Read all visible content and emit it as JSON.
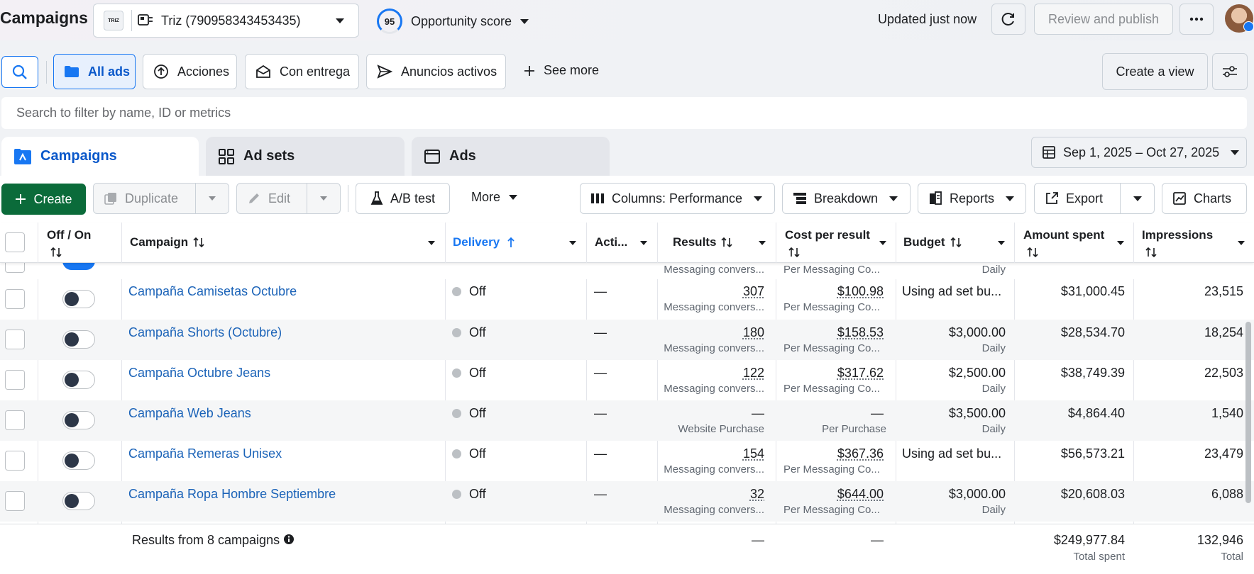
{
  "header": {
    "title": "Campaigns",
    "account_name": "Triz (790958343453435)",
    "account_logo_text": "TRIZ",
    "opportunity_score": "95",
    "opportunity_label": "Opportunity score",
    "updated_text": "Updated just now",
    "review_publish_label": "Review and publish"
  },
  "views": {
    "items": [
      {
        "label": "All ads",
        "active": true
      },
      {
        "label": "Acciones"
      },
      {
        "label": "Con entrega"
      },
      {
        "label": "Anuncios activos"
      }
    ],
    "see_more_label": "See more",
    "create_view_label": "Create a view"
  },
  "search": {
    "placeholder": "Search to filter by name, ID or metrics"
  },
  "tabs": [
    {
      "label": "Campaigns",
      "active": true
    },
    {
      "label": "Ad sets"
    },
    {
      "label": "Ads"
    }
  ],
  "date_range": "Sep 1, 2025 – Oct 27, 2025",
  "actions": {
    "create": "Create",
    "duplicate": "Duplicate",
    "edit": "Edit",
    "ab_test": "A/B test",
    "more": "More",
    "columns": "Columns: Performance",
    "breakdown": "Breakdown",
    "reports": "Reports",
    "export": "Export",
    "charts": "Charts"
  },
  "table": {
    "headers": {
      "off_on": "Off / On",
      "campaign": "Campaign",
      "delivery": "Delivery",
      "actions": "Acti...",
      "results": "Results",
      "cost_per_result": "Cost per result",
      "budget": "Budget",
      "amount_spent": "Amount spent",
      "impressions": "Impressions"
    },
    "partial_row": {
      "results_sub": "Messaging convers...",
      "cost_sub": "Per Messaging Co...",
      "budget_sub": "Daily"
    },
    "rows": [
      {
        "campaign": "Campaña Camisetas Octubre",
        "delivery": "Off",
        "actions": "—",
        "results": "307",
        "results_sub": "Messaging convers...",
        "cost": "$100.98",
        "cost_sub": "Per Messaging Co...",
        "budget": "Using ad set bu...",
        "budget_sub": "",
        "spent": "$31,000.45",
        "impressions": "23,515"
      },
      {
        "campaign": "Campaña Shorts (Octubre)",
        "delivery": "Off",
        "actions": "—",
        "results": "180",
        "results_sub": "Messaging convers...",
        "cost": "$158.53",
        "cost_sub": "Per Messaging Co...",
        "budget": "$3,000.00",
        "budget_sub": "Daily",
        "spent": "$28,534.70",
        "impressions": "18,254"
      },
      {
        "campaign": "Campaña Octubre Jeans",
        "delivery": "Off",
        "actions": "—",
        "results": "122",
        "results_sub": "Messaging convers...",
        "cost": "$317.62",
        "cost_sub": "Per Messaging Co...",
        "budget": "$2,500.00",
        "budget_sub": "Daily",
        "spent": "$38,749.39",
        "impressions": "22,503"
      },
      {
        "campaign": "Campaña Web Jeans",
        "delivery": "Off",
        "actions": "—",
        "results": "—",
        "results_sub": "Website Purchase",
        "cost": "—",
        "cost_sub": "Per Purchase",
        "budget": "$3,500.00",
        "budget_sub": "Daily",
        "spent": "$4,864.40",
        "impressions": "1,540"
      },
      {
        "campaign": "Campaña Remeras Unisex",
        "delivery": "Off",
        "actions": "—",
        "results": "154",
        "results_sub": "Messaging convers...",
        "cost": "$367.36",
        "cost_sub": "Per Messaging Co...",
        "budget": "Using ad set bu...",
        "budget_sub": "",
        "spent": "$56,573.21",
        "impressions": "23,479"
      },
      {
        "campaign": "Campaña Ropa Hombre Septiembre",
        "delivery": "Off",
        "actions": "—",
        "results": "32",
        "results_sub": "Messaging convers...",
        "cost": "$644.00",
        "cost_sub": "Per Messaging Co...",
        "budget": "$3,000.00",
        "budget_sub": "Daily",
        "spent": "$20,608.03",
        "impressions": "6,088"
      }
    ],
    "footer": {
      "label": "Results from 8 campaigns",
      "results": "—",
      "cost": "—",
      "spent": "$249,977.84",
      "spent_sub": "Total spent",
      "impressions": "132,946",
      "impressions_sub": "Total"
    }
  },
  "colors": {
    "primary_green": "#0b6b3a",
    "link_blue": "#1b63b8",
    "accent_blue": "#1877f2"
  }
}
